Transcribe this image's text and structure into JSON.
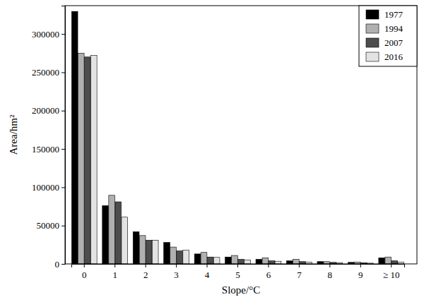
{
  "chart_data": {
    "type": "bar",
    "xlabel": "Slope/°C",
    "ylabel": "Area/hm²",
    "categories": [
      "0",
      "1",
      "2",
      "3",
      "4",
      "5",
      "6",
      "7",
      "8",
      "9",
      "≥ 10"
    ],
    "series": [
      {
        "name": "1977",
        "color": "#000000",
        "values": [
          329500,
          76000,
          42000,
          28000,
          13000,
          9000,
          6000,
          4000,
          3000,
          2000,
          8000
        ]
      },
      {
        "name": "1994",
        "color": "#b0b0b0",
        "values": [
          275000,
          89500,
          37000,
          22000,
          15000,
          11000,
          8000,
          6000,
          3000,
          2500,
          9000
        ]
      },
      {
        "name": "2007",
        "color": "#4d4d4d",
        "values": [
          270000,
          81000,
          31000,
          17000,
          9000,
          6000,
          4000,
          3000,
          2000,
          1500,
          4000
        ]
      },
      {
        "name": "2016",
        "color": "#e3e3e3",
        "values": [
          272000,
          61000,
          31000,
          18000,
          8500,
          5000,
          3500,
          2500,
          1500,
          1000,
          2500
        ]
      }
    ],
    "ylim": [
      0,
      337000
    ],
    "yticks": [
      0,
      50000,
      100000,
      150000,
      200000,
      250000,
      300000
    ],
    "legend": "upper right"
  }
}
